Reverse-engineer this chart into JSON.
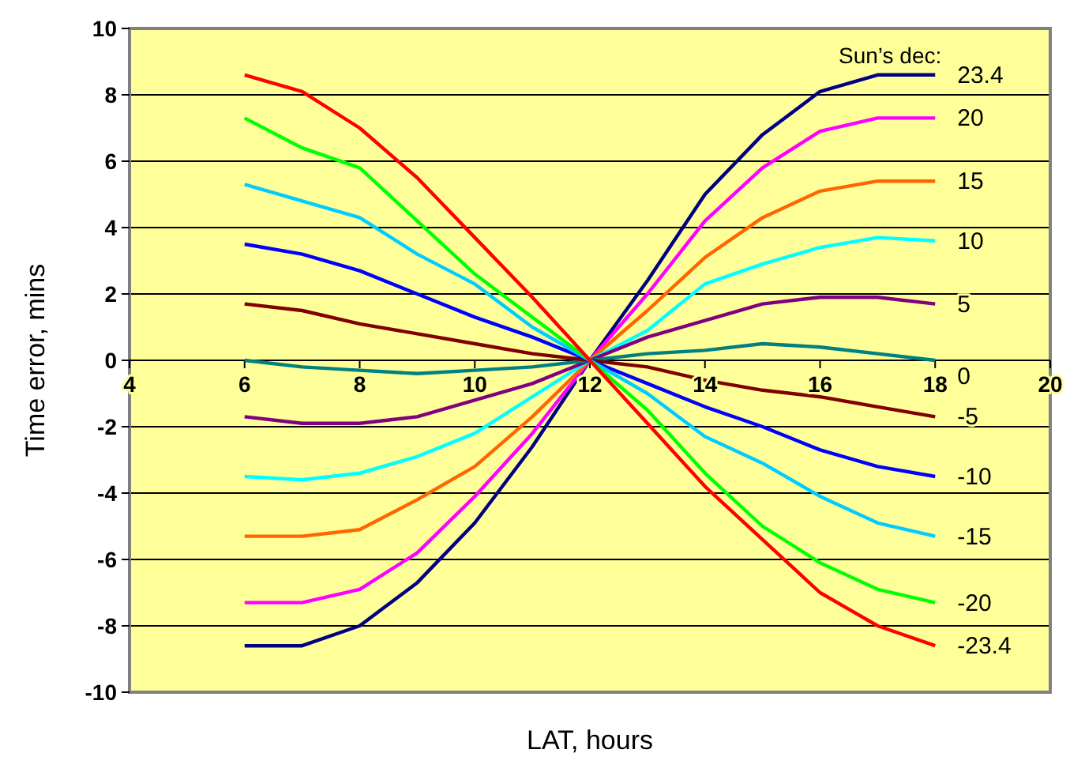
{
  "chart_data": {
    "type": "line",
    "xlabel": "LAT, hours",
    "ylabel": "Time error, mins",
    "legend_title": "Sun’s dec:",
    "x": [
      6,
      7,
      8,
      9,
      10,
      11,
      12,
      13,
      14,
      15,
      16,
      17,
      18
    ],
    "xlim": [
      4,
      20
    ],
    "xticks": [
      4,
      6,
      8,
      10,
      12,
      14,
      16,
      18,
      20
    ],
    "ylim": [
      -10,
      10
    ],
    "yticks": [
      -10,
      -8,
      -6,
      -4,
      -2,
      0,
      2,
      4,
      6,
      8,
      10
    ],
    "grid": "y",
    "legend": "right",
    "marker": "none",
    "line_style": "solid",
    "series": [
      {
        "name": "23.4",
        "color": "#000080",
        "values": [
          -8.6,
          -8.6,
          -8.0,
          -6.7,
          -4.9,
          -2.6,
          0,
          2.4,
          5.0,
          6.8,
          8.1,
          8.6,
          8.6
        ]
      },
      {
        "name": "20",
        "color": "#ff00ff",
        "values": [
          -7.3,
          -7.3,
          -6.9,
          -5.8,
          -4.1,
          -2.2,
          0,
          2.0,
          4.2,
          5.8,
          6.9,
          7.3,
          7.3
        ]
      },
      {
        "name": "15",
        "color": "#ff6600",
        "values": [
          -5.3,
          -5.3,
          -5.1,
          -4.2,
          -3.2,
          -1.7,
          0,
          1.5,
          3.1,
          4.3,
          5.1,
          5.4,
          5.4
        ]
      },
      {
        "name": "10",
        "color": "#00ffff",
        "values": [
          -3.5,
          -3.6,
          -3.4,
          -2.9,
          -2.2,
          -1.1,
          0,
          0.9,
          2.3,
          2.9,
          3.4,
          3.7,
          3.6
        ]
      },
      {
        "name": "5",
        "color": "#800080",
        "values": [
          -1.7,
          -1.9,
          -1.9,
          -1.7,
          -1.2,
          -0.7,
          0,
          0.7,
          1.2,
          1.7,
          1.9,
          1.9,
          1.7
        ]
      },
      {
        "name": "0",
        "color": "#008080",
        "values": [
          0,
          -0.2,
          -0.3,
          -0.4,
          -0.3,
          -0.2,
          0,
          0.2,
          0.3,
          0.5,
          0.4,
          0.2,
          0
        ]
      },
      {
        "name": "-5",
        "color": "#800000",
        "values": [
          1.7,
          1.5,
          1.1,
          0.8,
          0.5,
          0.2,
          0,
          -0.2,
          -0.6,
          -0.9,
          -1.1,
          -1.4,
          -1.7
        ]
      },
      {
        "name": "-10",
        "color": "#0000ff",
        "values": [
          3.5,
          3.2,
          2.7,
          2.0,
          1.3,
          0.7,
          0,
          -0.7,
          -1.4,
          -2.0,
          -2.7,
          -3.2,
          -3.5
        ]
      },
      {
        "name": "-15",
        "color": "#00ccff",
        "values": [
          5.3,
          4.8,
          4.3,
          3.2,
          2.3,
          1.0,
          0,
          -1.0,
          -2.3,
          -3.1,
          -4.1,
          -4.9,
          -5.3
        ]
      },
      {
        "name": "-20",
        "color": "#00ff00",
        "values": [
          7.3,
          6.4,
          5.8,
          4.2,
          2.6,
          1.3,
          0,
          -1.5,
          -3.4,
          -5.0,
          -6.1,
          -6.9,
          -7.3
        ]
      },
      {
        "name": "-23.4",
        "color": "#ff0000",
        "values": [
          8.6,
          8.1,
          7.0,
          5.5,
          3.7,
          1.9,
          0,
          -1.9,
          -3.8,
          -5.4,
          -7.0,
          -8.0,
          -8.6
        ]
      }
    ]
  }
}
